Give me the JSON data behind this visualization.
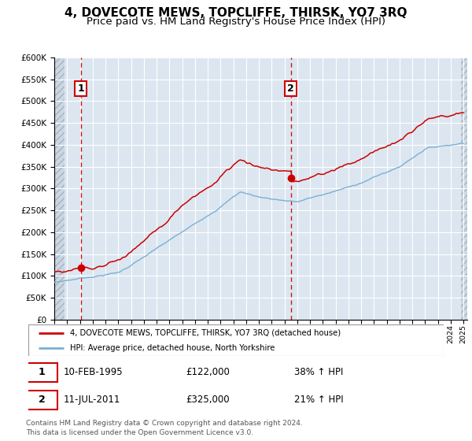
{
  "title": "4, DOVECOTE MEWS, TOPCLIFFE, THIRSK, YO7 3RQ",
  "subtitle": "Price paid vs. HM Land Registry's House Price Index (HPI)",
  "ylim": [
    0,
    600000
  ],
  "yticks": [
    0,
    50000,
    100000,
    150000,
    200000,
    250000,
    300000,
    350000,
    400000,
    450000,
    500000,
    550000,
    600000
  ],
  "sale1_year": 1995.083,
  "sale1_price": 122000,
  "sale2_year": 2011.5,
  "sale2_price": 325000,
  "sale1_date": "10-FEB-1995",
  "sale2_date": "11-JUL-2011",
  "sale1_pct": "38% ↑ HPI",
  "sale2_pct": "21% ↑ HPI",
  "red_line_color": "#cc0000",
  "blue_line_color": "#7bafd4",
  "background_color": "#dce6f0",
  "grid_color": "#ffffff",
  "legend_label_red": "4, DOVECOTE MEWS, TOPCLIFFE, THIRSK, YO7 3RQ (detached house)",
  "legend_label_blue": "HPI: Average price, detached house, North Yorkshire",
  "footer": "Contains HM Land Registry data © Crown copyright and database right 2024.\nThis data is licensed under the Open Government Licence v3.0.",
  "title_fontsize": 11,
  "subtitle_fontsize": 9.5,
  "xmin": 1993,
  "xmax": 2025.3
}
